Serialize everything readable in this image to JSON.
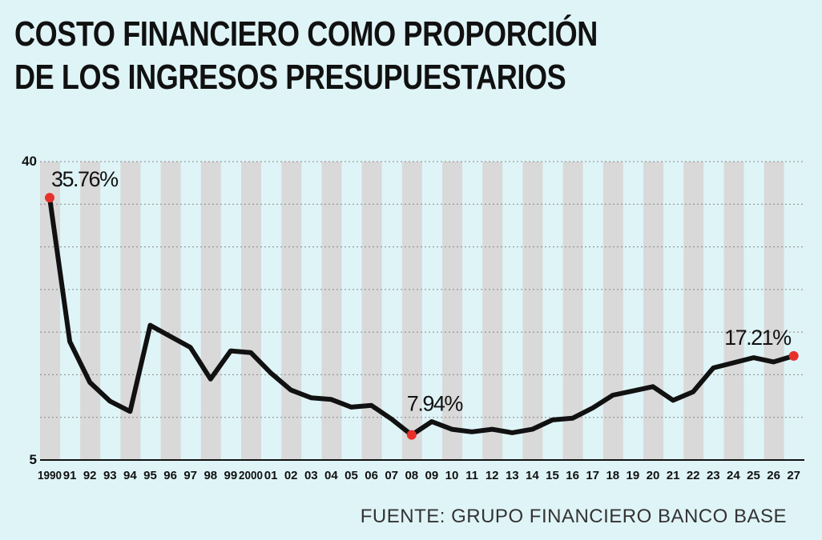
{
  "title_lines": [
    "COSTO FINANCIERO COMO PROPORCIÓN",
    "DE LOS INGRESOS PRESUPUESTARIOS"
  ],
  "source": "FUENTE: GRUPO FINANCIERO BANCO BASE",
  "colors": {
    "background": "#dff4f7",
    "stripe": "#d9d9d9",
    "line": "#111111",
    "marker": "#e8302a",
    "gridline": "#888888"
  },
  "chart_data": {
    "type": "line",
    "title": "COSTO FINANCIERO COMO PROPORCIÓN DE LOS INGRESOS PRESUPUESTARIOS",
    "xlabel": "",
    "ylabel": "",
    "ylim": [
      5,
      40
    ],
    "yticks": [
      5,
      40
    ],
    "grid": true,
    "categories": [
      "1990",
      "91",
      "92",
      "93",
      "94",
      "95",
      "96",
      "97",
      "98",
      "99",
      "2000",
      "01",
      "02",
      "03",
      "04",
      "05",
      "06",
      "07",
      "08",
      "09",
      "10",
      "11",
      "12",
      "13",
      "14",
      "15",
      "16",
      "17",
      "18",
      "19",
      "20",
      "21",
      "22",
      "23",
      "24",
      "25",
      "26",
      "27"
    ],
    "series": [
      {
        "values": [
          35.76,
          18.9,
          14.1,
          11.9,
          10.7,
          20.8,
          19.5,
          18.2,
          14.5,
          17.8,
          17.6,
          15.2,
          13.2,
          12.3,
          12.1,
          11.2,
          11.4,
          9.8,
          7.94,
          9.5,
          8.6,
          8.3,
          8.6,
          8.2,
          8.6,
          9.7,
          9.9,
          11.1,
          12.6,
          13.1,
          13.6,
          12.0,
          13.0,
          15.8,
          16.4,
          17.0,
          16.5,
          17.21
        ]
      }
    ],
    "annotations": [
      {
        "index": 0,
        "label": "35.76%"
      },
      {
        "index": 18,
        "label": "7.94%"
      },
      {
        "index": 37,
        "label": "17.21%"
      }
    ]
  }
}
